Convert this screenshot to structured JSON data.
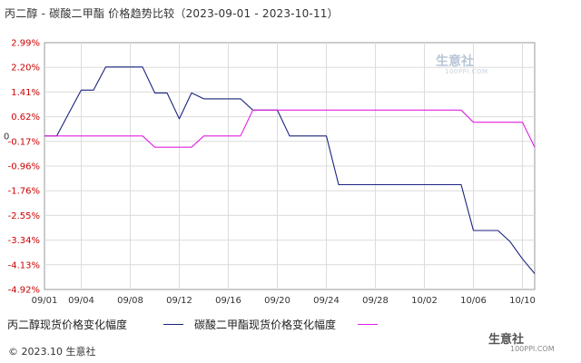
{
  "chart_data": {
    "type": "line",
    "title": "丙二醇 - 碳酸二甲酯 价格趋势比较（2023-09-01 - 2023-10-11）",
    "xlabel": "",
    "ylabel": "",
    "x_range": [
      "2023-09-01",
      "2023-10-11"
    ],
    "x_ticks": [
      "09/01",
      "09/04",
      "09/08",
      "09/12",
      "09/16",
      "09/20",
      "09/24",
      "09/28",
      "10/02",
      "10/06",
      "10/10"
    ],
    "y_ticks": [
      "2.99%",
      "2.20%",
      "1.41%",
      "0.62%",
      "-0.17%",
      "-0.96%",
      "-1.76%",
      "-2.55%",
      "-3.34%",
      "-4.13%",
      "-4.92%"
    ],
    "y_zero_label": "0",
    "ylim": [
      -4.92,
      2.99
    ],
    "grid": true,
    "legend_position": "bottom",
    "series": [
      {
        "name": "丙二醇现货价格变化幅度",
        "color": "#1a237e",
        "points": [
          [
            "09/01",
            0
          ],
          [
            "09/02",
            0
          ],
          [
            "09/03",
            0.74
          ],
          [
            "09/04",
            1.47
          ],
          [
            "09/05",
            1.47
          ],
          [
            "09/06",
            2.21
          ],
          [
            "09/07",
            2.21
          ],
          [
            "09/08",
            2.21
          ],
          [
            "09/09",
            2.21
          ],
          [
            "09/10",
            1.38
          ],
          [
            "09/11",
            1.38
          ],
          [
            "09/12",
            0.55
          ],
          [
            "09/13",
            1.38
          ],
          [
            "09/14",
            1.19
          ],
          [
            "09/15",
            1.19
          ],
          [
            "09/16",
            1.19
          ],
          [
            "09/17",
            1.19
          ],
          [
            "09/18",
            0.83
          ],
          [
            "09/19",
            0.83
          ],
          [
            "09/20",
            0.83
          ],
          [
            "09/21",
            0
          ],
          [
            "09/22",
            0
          ],
          [
            "09/23",
            0
          ],
          [
            "09/24",
            0
          ],
          [
            "09/25",
            -1.56
          ],
          [
            "09/26",
            -1.56
          ],
          [
            "09/27",
            -1.56
          ],
          [
            "09/28",
            -1.56
          ],
          [
            "09/29",
            -1.56
          ],
          [
            "09/30",
            -1.56
          ],
          [
            "10/01",
            -1.56
          ],
          [
            "10/02",
            -1.56
          ],
          [
            "10/03",
            -1.56
          ],
          [
            "10/04",
            -1.56
          ],
          [
            "10/05",
            -1.56
          ],
          [
            "10/06",
            -3.03
          ],
          [
            "10/07",
            -3.03
          ],
          [
            "10/08",
            -3.03
          ],
          [
            "10/09",
            -3.39
          ],
          [
            "10/10",
            -3.94
          ],
          [
            "10/11",
            -4.41
          ]
        ]
      },
      {
        "name": "碳酸二甲酯现货价格变化幅度",
        "color": "#e020e0",
        "points": [
          [
            "09/01",
            0
          ],
          [
            "09/02",
            0
          ],
          [
            "09/03",
            0
          ],
          [
            "09/04",
            0
          ],
          [
            "09/05",
            0
          ],
          [
            "09/06",
            0
          ],
          [
            "09/07",
            0
          ],
          [
            "09/08",
            0
          ],
          [
            "09/09",
            0
          ],
          [
            "09/10",
            -0.36
          ],
          [
            "09/11",
            -0.36
          ],
          [
            "09/12",
            -0.36
          ],
          [
            "09/13",
            -0.36
          ],
          [
            "09/14",
            0
          ],
          [
            "09/15",
            0
          ],
          [
            "09/16",
            0
          ],
          [
            "09/17",
            0
          ],
          [
            "09/18",
            0.83
          ],
          [
            "09/19",
            0.83
          ],
          [
            "09/20",
            0.83
          ],
          [
            "09/21",
            0.83
          ],
          [
            "09/22",
            0.83
          ],
          [
            "09/23",
            0.83
          ],
          [
            "09/24",
            0.83
          ],
          [
            "09/25",
            0.83
          ],
          [
            "09/26",
            0.83
          ],
          [
            "09/27",
            0.83
          ],
          [
            "09/28",
            0.83
          ],
          [
            "09/29",
            0.83
          ],
          [
            "09/30",
            0.83
          ],
          [
            "10/01",
            0.83
          ],
          [
            "10/02",
            0.83
          ],
          [
            "10/03",
            0.83
          ],
          [
            "10/04",
            0.83
          ],
          [
            "10/05",
            0.83
          ],
          [
            "10/06",
            0.44
          ],
          [
            "10/07",
            0.44
          ],
          [
            "10/08",
            0.44
          ],
          [
            "10/09",
            0.44
          ],
          [
            "10/10",
            0.44
          ],
          [
            "10/11",
            -0.36
          ]
        ]
      }
    ]
  },
  "footer": {
    "copyright": "© 2023.10 生意社"
  },
  "watermark": {
    "brand": "生意社",
    "url": "100PPI.COM"
  },
  "corner_logo": {
    "brand": "生意社",
    "url": "100PPI.COM"
  }
}
